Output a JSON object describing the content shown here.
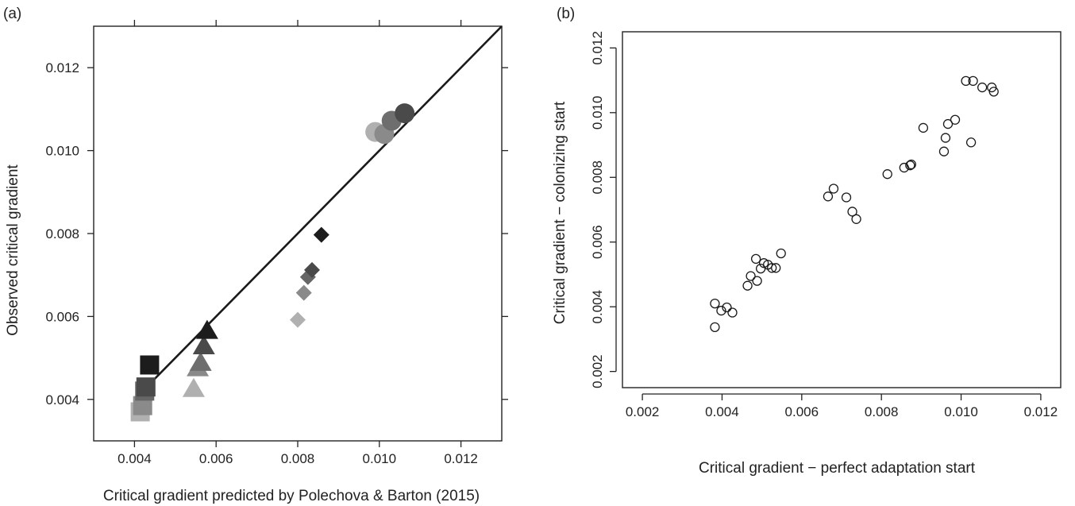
{
  "chart_data": [
    {
      "panel": "(a)",
      "type": "scatter",
      "title": "",
      "xlabel": "Critical gradient predicted by Polechova & Barton (2015)",
      "ylabel": "Observed critical gradient",
      "xlim": [
        0.003,
        0.013
      ],
      "ylim": [
        0.003,
        0.013
      ],
      "x_ticks": [
        "0.004",
        "0.006",
        "0.008",
        "0.010",
        "0.012"
      ],
      "y_ticks": [
        "0.004",
        "0.006",
        "0.008",
        "0.010",
        "0.012"
      ],
      "reference_line": {
        "type": "identity",
        "from": [
          0.0041,
          0.0041
        ],
        "to": [
          0.013,
          0.013
        ]
      },
      "grid": false,
      "legend": "none",
      "series": [
        {
          "marker": "square",
          "points": [
            {
              "x": 0.00437,
              "y": 0.00483,
              "color": "#1c1c1c"
            },
            {
              "x": 0.00428,
              "y": 0.0043,
              "color": "#4a4a4a"
            },
            {
              "x": 0.00425,
              "y": 0.0042,
              "color": "#666666"
            },
            {
              "x": 0.0042,
              "y": 0.00385,
              "color": "#8a8a8a"
            },
            {
              "x": 0.00414,
              "y": 0.0037,
              "color": "#b0b0b0"
            }
          ]
        },
        {
          "marker": "triangle",
          "points": [
            {
              "x": 0.00578,
              "y": 0.00565,
              "color": "#1c1c1c"
            },
            {
              "x": 0.0057,
              "y": 0.00528,
              "color": "#4a4a4a"
            },
            {
              "x": 0.00562,
              "y": 0.00488,
              "color": "#6e6e6e"
            },
            {
              "x": 0.00555,
              "y": 0.00475,
              "color": "#8a8a8a"
            },
            {
              "x": 0.00545,
              "y": 0.00425,
              "color": "#b0b0b0"
            }
          ]
        },
        {
          "marker": "diamond",
          "points": [
            {
              "x": 0.00858,
              "y": 0.00797,
              "color": "#1c1c1c"
            },
            {
              "x": 0.00835,
              "y": 0.00712,
              "color": "#4a4a4a"
            },
            {
              "x": 0.00825,
              "y": 0.00695,
              "color": "#666666"
            },
            {
              "x": 0.00815,
              "y": 0.00657,
              "color": "#8a8a8a"
            },
            {
              "x": 0.008,
              "y": 0.00592,
              "color": "#b0b0b0"
            }
          ]
        },
        {
          "marker": "circle",
          "points": [
            {
              "x": 0.01062,
              "y": 0.0109,
              "color": "#4a4a4a"
            },
            {
              "x": 0.0103,
              "y": 0.01072,
              "color": "#6e6e6e"
            },
            {
              "x": 0.01012,
              "y": 0.0104,
              "color": "#8a8a8a"
            },
            {
              "x": 0.0099,
              "y": 0.01045,
              "color": "#b0b0b0"
            }
          ]
        }
      ]
    },
    {
      "panel": "(b)",
      "type": "scatter",
      "title": "",
      "xlabel": "Critical gradient − perfect adaptation start",
      "ylabel": "Critical gradient − colonizing start",
      "xlim": [
        0.0015,
        0.0125
      ],
      "ylim": [
        0.0015,
        0.0125
      ],
      "x_ticks": [
        "0.002",
        "0.004",
        "0.006",
        "0.008",
        "0.010",
        "0.012"
      ],
      "y_ticks": [
        "0.002",
        "0.004",
        "0.006",
        "0.008",
        "0.010",
        "0.012"
      ],
      "grid": false,
      "legend": "none",
      "series": [
        {
          "marker": "open-circle",
          "x": [
            0.00382,
            0.00382,
            0.00398,
            0.00412,
            0.00426,
            0.00464,
            0.00472,
            0.00485,
            0.00488,
            0.00497,
            0.00505,
            0.00515,
            0.00525,
            0.00535,
            0.00548,
            0.00666,
            0.0068,
            0.00712,
            0.00727,
            0.00737,
            0.00815,
            0.00857,
            0.00872,
            0.00875,
            0.00905,
            0.00957,
            0.00961,
            0.00967,
            0.00985,
            0.01012,
            0.01025,
            0.0103,
            0.01053,
            0.01077,
            0.01082
          ],
          "y": [
            0.00337,
            0.0041,
            0.00388,
            0.00398,
            0.00382,
            0.00465,
            0.00495,
            0.00548,
            0.0048,
            0.00518,
            0.00535,
            0.0053,
            0.0052,
            0.0052,
            0.00565,
            0.00741,
            0.00765,
            0.00738,
            0.00694,
            0.00671,
            0.0081,
            0.0083,
            0.00837,
            0.0084,
            0.00953,
            0.0088,
            0.00922,
            0.00965,
            0.00978,
            0.01098,
            0.00908,
            0.01098,
            0.01078,
            0.01078,
            0.01065
          ]
        }
      ]
    }
  ],
  "colors": {
    "axis": "#222222",
    "line": "#1a1a1a"
  }
}
